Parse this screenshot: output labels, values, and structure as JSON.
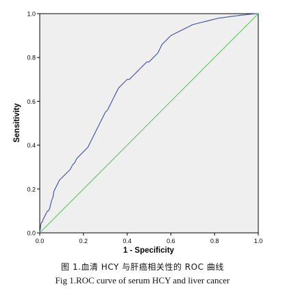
{
  "colors": {
    "plot_bg": "#efefef",
    "frame": "#000000",
    "roc_curve": "#4a58a6",
    "reference_line": "#5dc45d"
  },
  "captions": {
    "chinese": "图 1.血清 HCY 与肝癌相关性的 ROC 曲线",
    "english": "Fig 1.ROC curve of serum HCY and liver cancer"
  },
  "chart_data": {
    "type": "line",
    "title": "",
    "xlabel": "1 - Specificity",
    "ylabel": "Sensitivity",
    "xlim": [
      0,
      1
    ],
    "ylim": [
      0,
      1
    ],
    "x_ticks": [
      "0.0",
      "0.2",
      "0.4",
      "0.6",
      "0.8",
      "1.0"
    ],
    "y_ticks": [
      "0.0",
      "0.2",
      "0.4",
      "0.6",
      "0.8",
      "1.0"
    ],
    "grid": false,
    "series": [
      {
        "role": "roc_curve",
        "x": [
          0.0,
          0.003,
          0.005,
          0.01,
          0.012,
          0.015,
          0.02,
          0.025,
          0.03,
          0.035,
          0.04,
          0.045,
          0.05,
          0.055,
          0.06,
          0.065,
          0.07,
          0.08,
          0.085,
          0.09,
          0.1,
          0.11,
          0.12,
          0.13,
          0.14,
          0.15,
          0.16,
          0.17,
          0.18,
          0.19,
          0.2,
          0.21,
          0.22,
          0.23,
          0.24,
          0.25,
          0.26,
          0.27,
          0.28,
          0.29,
          0.3,
          0.31,
          0.32,
          0.33,
          0.34,
          0.35,
          0.36,
          0.37,
          0.38,
          0.39,
          0.4,
          0.41,
          0.42,
          0.43,
          0.44,
          0.45,
          0.46,
          0.47,
          0.48,
          0.49,
          0.5,
          0.51,
          0.52,
          0.53,
          0.54,
          0.55,
          0.56,
          0.57,
          0.58,
          0.59,
          0.6,
          0.62,
          0.64,
          0.66,
          0.68,
          0.7,
          0.72,
          0.74,
          0.76,
          0.78,
          0.8,
          0.82,
          0.84,
          0.86,
          0.88,
          0.9,
          0.92,
          0.94,
          0.96,
          0.98,
          1.0
        ],
        "y": [
          0.0,
          0.02,
          0.04,
          0.05,
          0.05,
          0.06,
          0.07,
          0.08,
          0.09,
          0.1,
          0.1,
          0.11,
          0.13,
          0.15,
          0.16,
          0.19,
          0.2,
          0.22,
          0.23,
          0.24,
          0.25,
          0.26,
          0.27,
          0.28,
          0.29,
          0.31,
          0.32,
          0.34,
          0.35,
          0.36,
          0.37,
          0.38,
          0.39,
          0.41,
          0.43,
          0.45,
          0.47,
          0.49,
          0.51,
          0.53,
          0.55,
          0.56,
          0.58,
          0.6,
          0.62,
          0.64,
          0.66,
          0.67,
          0.68,
          0.69,
          0.7,
          0.7,
          0.71,
          0.72,
          0.73,
          0.74,
          0.75,
          0.76,
          0.77,
          0.78,
          0.78,
          0.79,
          0.8,
          0.81,
          0.82,
          0.84,
          0.86,
          0.87,
          0.88,
          0.89,
          0.9,
          0.91,
          0.92,
          0.93,
          0.94,
          0.95,
          0.955,
          0.96,
          0.965,
          0.97,
          0.975,
          0.98,
          0.982,
          0.985,
          0.988,
          0.99,
          0.993,
          0.995,
          0.997,
          0.999,
          1.0
        ]
      },
      {
        "role": "reference_line",
        "x": [
          0,
          1
        ],
        "y": [
          0,
          1
        ]
      }
    ]
  }
}
